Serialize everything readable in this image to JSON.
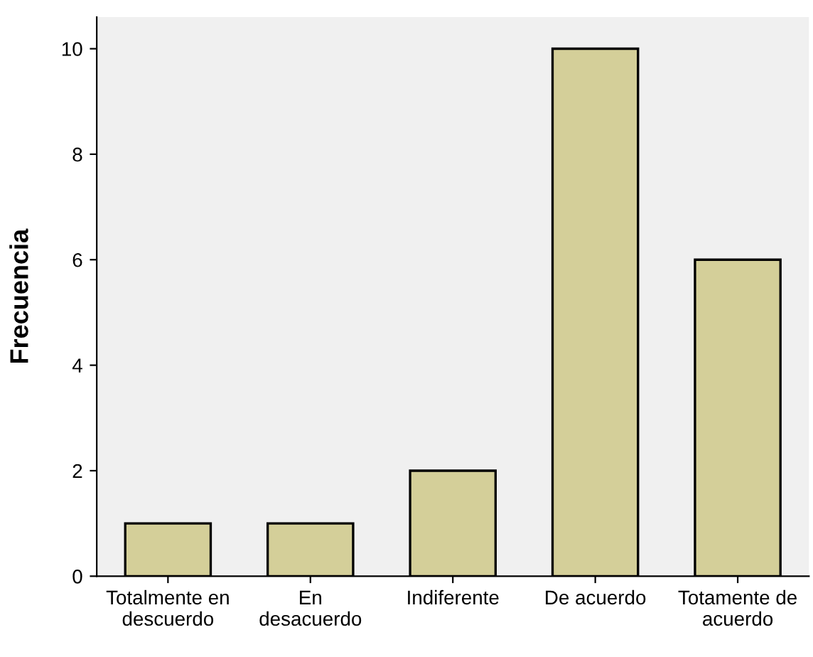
{
  "chart_data": {
    "type": "bar",
    "ylabel": "Frecuencia",
    "categories": [
      "Totalmente en\ndescuerdo",
      "En\ndesacuerdo",
      "Indiferente",
      "De acuerdo",
      "Totamente de\nacuerdo"
    ],
    "values": [
      1,
      1,
      2,
      10,
      6
    ],
    "color": "#d4cf99",
    "ylim": [
      0,
      10.6
    ],
    "yticks": [
      0,
      2,
      4,
      6,
      8,
      10
    ],
    "grid": false,
    "legend": false
  }
}
